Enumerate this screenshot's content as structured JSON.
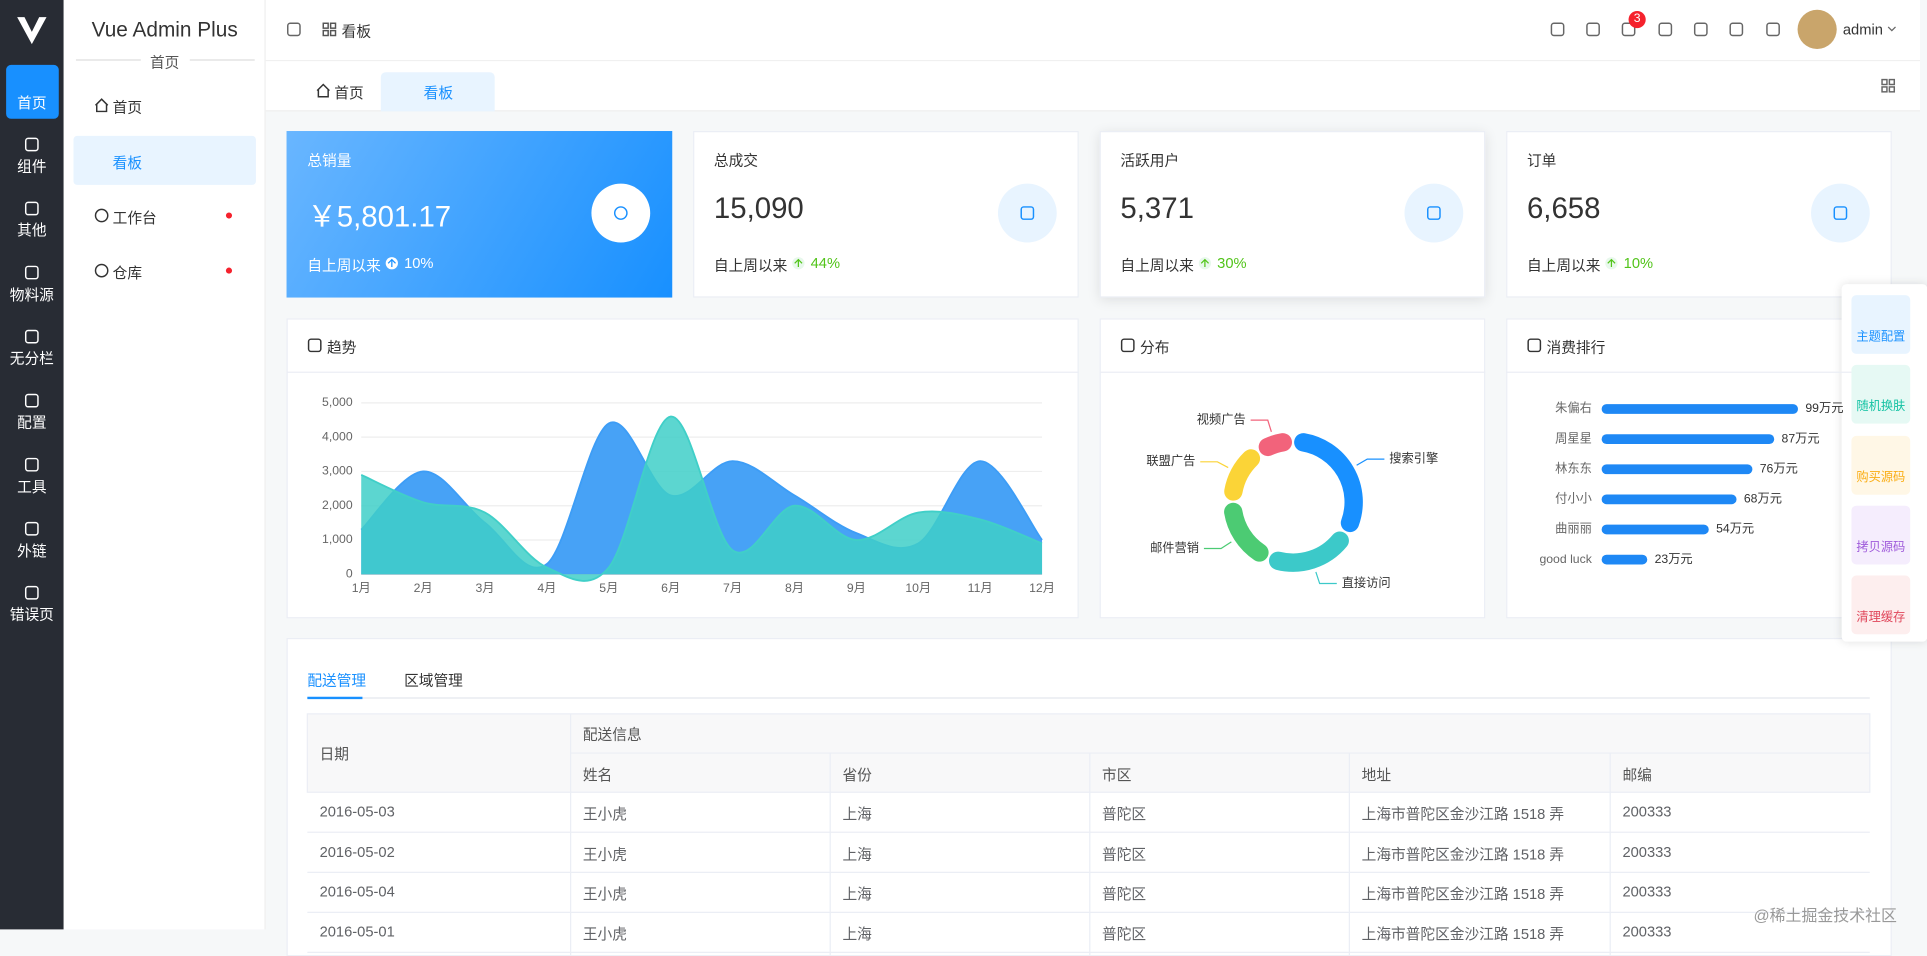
{
  "sidebar": {
    "items": [
      "首页",
      "组件",
      "其他",
      "物料源",
      "无分栏",
      "配置",
      "工具",
      "外链",
      "错误页"
    ]
  },
  "submenu": {
    "title": "Vue Admin Plus",
    "section": "首页",
    "items": [
      "首页",
      "看板",
      "工作台",
      "仓库"
    ]
  },
  "header": {
    "breadcrumb": "看板",
    "notifications": 3,
    "user": "admin"
  },
  "tabs": [
    "首页",
    "看板"
  ],
  "cards": [
    {
      "title": "总销量",
      "value": "￥5,801.17",
      "footer": "自上周以来",
      "change": "10%"
    },
    {
      "title": "总成交",
      "value": "15,090",
      "footer": "自上周以来",
      "change": "44%"
    },
    {
      "title": "活跃用户",
      "value": "5,371",
      "footer": "自上周以来",
      "change": "30%"
    },
    {
      "title": "订单",
      "value": "6,658",
      "footer": "自上周以来",
      "change": "10%"
    }
  ],
  "chart_data": [
    {
      "type": "area",
      "title": "趋势",
      "categories": [
        "1月",
        "2月",
        "3月",
        "4月",
        "5月",
        "6月",
        "7月",
        "8月",
        "9月",
        "10月",
        "11月",
        "12月"
      ],
      "series": [
        {
          "color": "#3d9df6",
          "values": [
            1300,
            3000,
            1500,
            300,
            4400,
            2300,
            3300,
            2300,
            1200,
            900,
            3300,
            1000
          ]
        },
        {
          "color": "#40cfc8",
          "values": [
            2900,
            2100,
            1800,
            200,
            200,
            4600,
            700,
            2000,
            1000,
            1800,
            1600,
            900
          ]
        }
      ],
      "ylim": [
        0,
        5000
      ],
      "yticks": [
        0,
        {
          "value": 1000,
          "label": "1,000"
        },
        {
          "value": 2000,
          "label": "2,000"
        },
        {
          "value": 3000,
          "label": "3,000"
        },
        {
          "value": 4000,
          "label": "4,000"
        },
        {
          "value": 5000,
          "label": "5,000"
        }
      ],
      "grid": true
    },
    {
      "type": "pie",
      "title": "分布",
      "categories": [
        "搜索引擎",
        "直接访问",
        "邮件营销",
        "联盟广告",
        "视频广告"
      ],
      "values": [
        1048,
        735,
        580,
        484,
        300
      ],
      "colors": [
        "#1890ff",
        "#3cc9c9",
        "#4ccb73",
        "#fbd437",
        "#f2637b"
      ],
      "donut": true
    },
    {
      "type": "bar",
      "orientation": "horizontal",
      "title": "消费排行",
      "categories": [
        "朱偏右",
        "周星星",
        "林东东",
        "付小小",
        "曲丽丽",
        "good luck"
      ],
      "values": [
        99,
        87,
        76,
        68,
        54,
        23
      ],
      "value_labels": [
        "99万元",
        "87万元",
        "76万元",
        "68万元",
        "54万元",
        "23万元"
      ],
      "xlim": [
        0,
        100
      ],
      "color": "#1e88f5"
    }
  ],
  "table": {
    "tabs": [
      "配送管理",
      "区域管理"
    ],
    "group_header": "配送信息",
    "columns": [
      "日期",
      "姓名",
      "省份",
      "市区",
      "地址",
      "邮编"
    ],
    "rows": [
      [
        "2016-05-03",
        "王小虎",
        "上海",
        "普陀区",
        "上海市普陀区金沙江路 1518 弄",
        "200333"
      ],
      [
        "2016-05-02",
        "王小虎",
        "上海",
        "普陀区",
        "上海市普陀区金沙江路 1518 弄",
        "200333"
      ],
      [
        "2016-05-04",
        "王小虎",
        "上海",
        "普陀区",
        "上海市普陀区金沙江路 1518 弄",
        "200333"
      ],
      [
        "2016-05-01",
        "王小虎",
        "上海",
        "普陀区",
        "上海市普陀区金沙江路 1518 弄",
        "200333"
      ]
    ]
  },
  "float_panel": [
    "主题配置",
    "随机换肤",
    "购买源码",
    "拷贝源码",
    "清理缓存"
  ],
  "watermark": "@稀土掘金技术社区"
}
